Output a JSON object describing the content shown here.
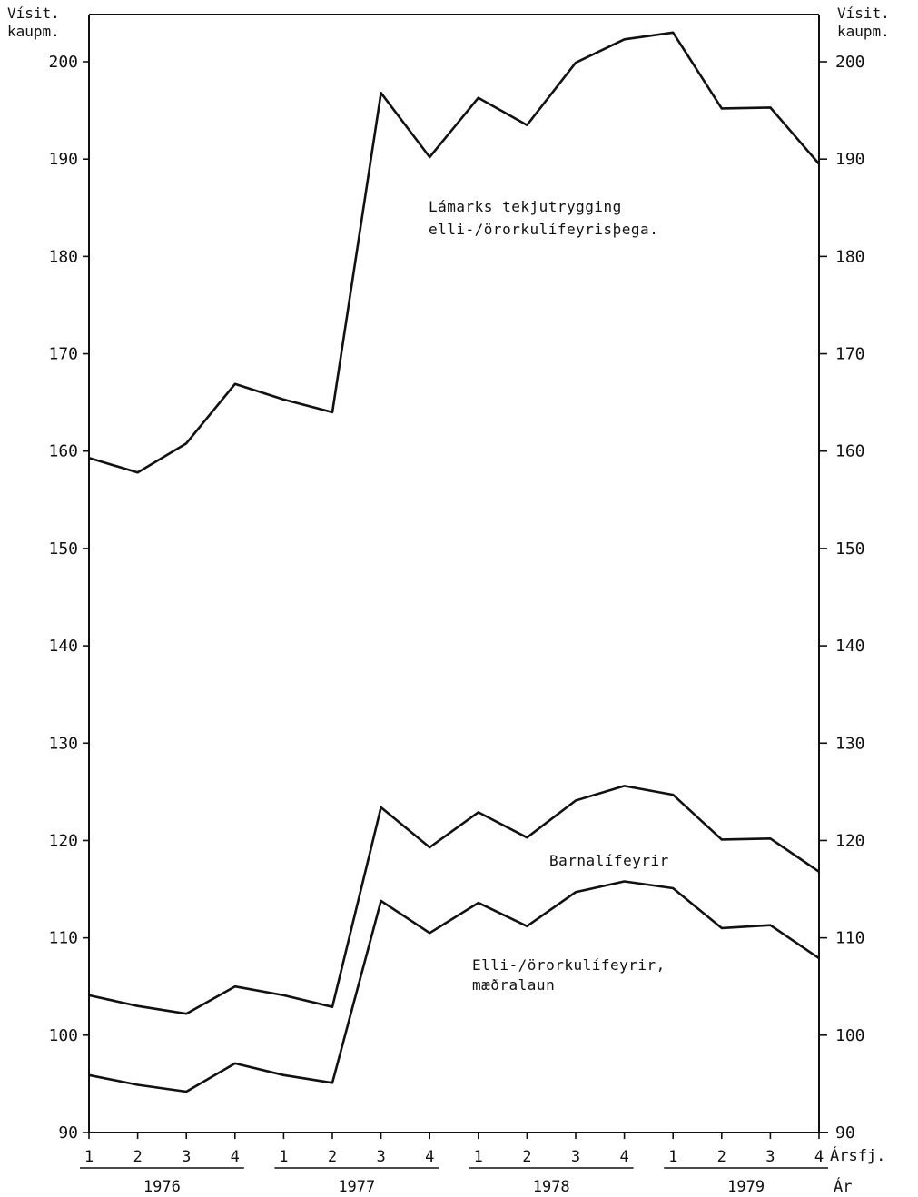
{
  "chart_data": {
    "type": "line",
    "corner_label_left": [
      "Vísit.",
      "kaupm."
    ],
    "corner_label_right": [
      "Vísit.",
      "kaupm."
    ],
    "ylim": [
      90,
      210
    ],
    "yticks": [
      90,
      100,
      110,
      120,
      130,
      140,
      150,
      160,
      170,
      180,
      190,
      200
    ],
    "quarter_labels": [
      "1",
      "2",
      "3",
      "4",
      "1",
      "2",
      "3",
      "4",
      "1",
      "2",
      "3",
      "4",
      "1",
      "2",
      "3",
      "4"
    ],
    "years": [
      "1976",
      "1977",
      "1978",
      "1979"
    ],
    "x_axis_label": "Ársfj.",
    "year_axis_label": "Ár",
    "series": [
      {
        "key": "lagmarks",
        "label_lines": [
          "Lámarks tekjutrygging",
          "elli-/örorkulífeyrisþega."
        ],
        "values": [
          159.3,
          157.8,
          160.8,
          166.9,
          165.3,
          164.0,
          196.8,
          190.2,
          196.3,
          193.5,
          199.9,
          202.3,
          203.0,
          195.2,
          195.3,
          189.5
        ]
      },
      {
        "key": "barnalifeyrir",
        "label_lines": [
          "Barnalífeyrir"
        ],
        "values": [
          104.1,
          103.0,
          102.2,
          105.0,
          104.1,
          102.9,
          123.4,
          119.3,
          122.9,
          120.3,
          124.1,
          125.6,
          124.7,
          120.1,
          120.2,
          116.8
        ]
      },
      {
        "key": "ellilifeyrir",
        "label_lines": [
          "Elli-/örorkulífeyrir,",
          "mæðralaun"
        ],
        "values": [
          95.9,
          94.9,
          94.2,
          97.1,
          95.9,
          95.1,
          113.8,
          110.5,
          113.6,
          111.2,
          114.7,
          115.8,
          115.1,
          111.0,
          111.3,
          107.9
        ]
      }
    ]
  }
}
